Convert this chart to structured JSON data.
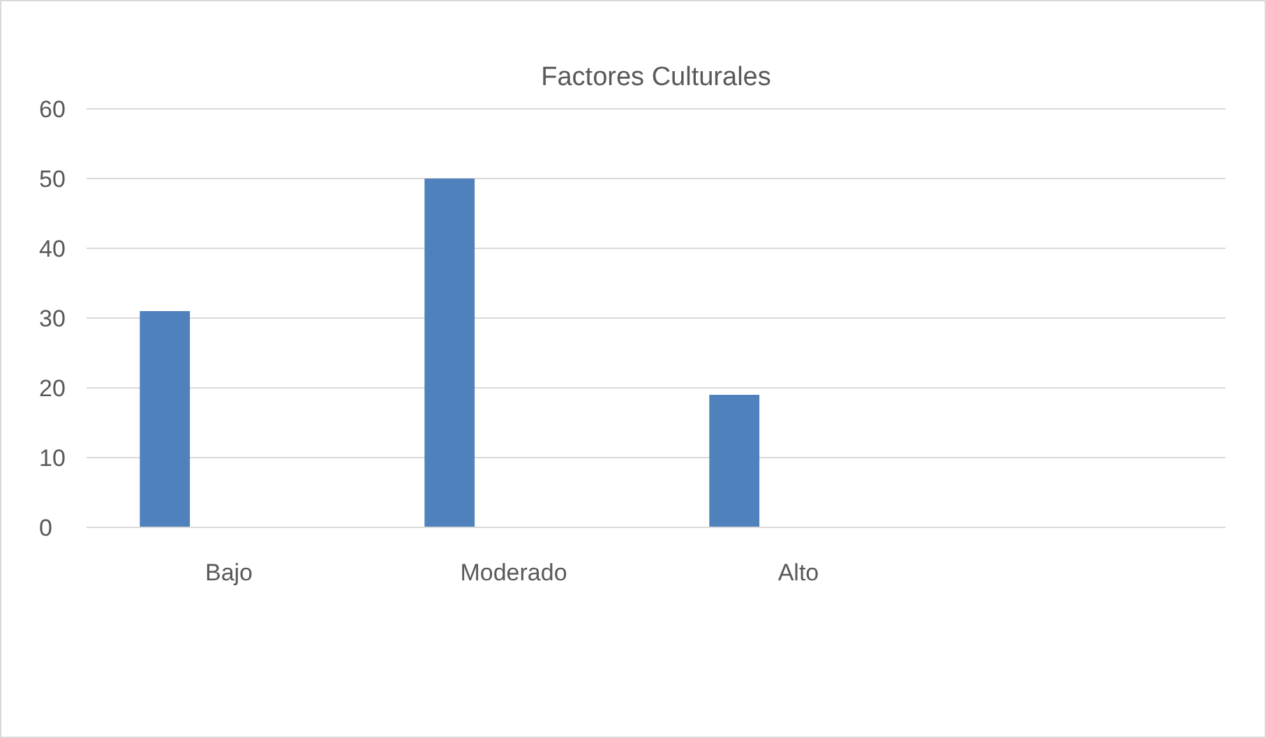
{
  "chart_data": {
    "type": "bar",
    "title": "Factores Culturales",
    "categories": [
      "Bajo",
      "Moderado",
      "Alto",
      null
    ],
    "series": [
      {
        "color": "#4f81bd",
        "values": [
          31,
          50,
          19,
          null
        ]
      }
    ],
    "ylim": [
      0,
      60
    ],
    "yticks": [
      0,
      10,
      20,
      30,
      40,
      50,
      60
    ],
    "grid": "y"
  }
}
